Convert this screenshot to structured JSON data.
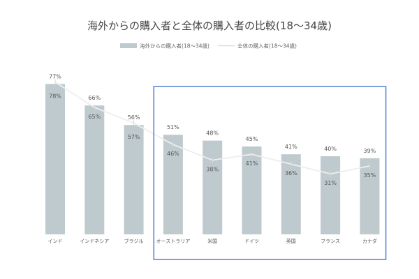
{
  "chart_data": {
    "type": "bar",
    "title": "海外からの購入者と全体の購入者の比較(18〜34歳)",
    "categories": [
      "インド",
      "インドネシア",
      "ブラジル",
      "オーストラリア",
      "米国",
      "ドイツ",
      "英国",
      "フランス",
      "カナダ"
    ],
    "series": [
      {
        "name": "海外からの購入者(18〜34歳)",
        "kind": "bar",
        "color": "#bfcace",
        "values": [
          77,
          66,
          56,
          51,
          48,
          45,
          41,
          40,
          39
        ],
        "labels": [
          "77%",
          "66%",
          "56%",
          "51%",
          "48%",
          "45%",
          "41%",
          "40%",
          "39%"
        ]
      },
      {
        "name": "全体の購入者(18〜34歳)",
        "kind": "line",
        "color": "#eeeeee",
        "values": [
          78,
          65,
          57,
          46,
          38,
          41,
          36,
          31,
          35
        ],
        "labels": [
          "78%",
          "65%",
          "57%",
          "46%",
          "38%",
          "41%",
          "36%",
          "31%",
          "35%"
        ]
      }
    ],
    "ylim": [
      0,
      85
    ],
    "grid": false,
    "legend": "top-center",
    "highlight": {
      "from": "オーストラリア",
      "to": "カナダ",
      "color": "#5b87d6"
    }
  }
}
